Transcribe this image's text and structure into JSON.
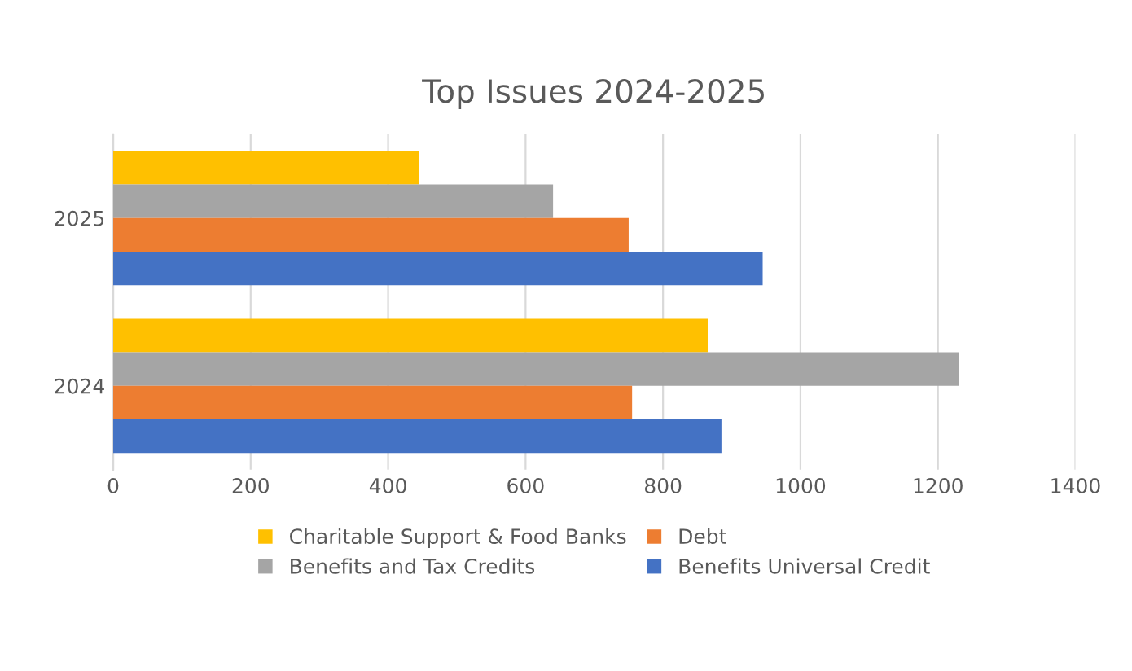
{
  "chart_data": {
    "type": "bar",
    "orientation": "horizontal",
    "title": "Top Issues 2024-2025",
    "categories": [
      "2025",
      "2024"
    ],
    "series": [
      {
        "name": "Charitable Support & Food Banks",
        "color": "#ffc000",
        "values": [
          445,
          865
        ]
      },
      {
        "name": "Benefits and Tax Credits",
        "color": "#a5a5a5",
        "values": [
          640,
          1230
        ]
      },
      {
        "name": "Debt",
        "color": "#ed7d31",
        "values": [
          750,
          755
        ]
      },
      {
        "name": "Benefits Universal Credit",
        "color": "#4472c4",
        "values": [
          945,
          885
        ]
      }
    ],
    "xlim": [
      0,
      1400
    ],
    "xticks": [
      0,
      200,
      400,
      600,
      800,
      1000,
      1200,
      1400
    ],
    "grid": "x",
    "legend": "bottom"
  }
}
